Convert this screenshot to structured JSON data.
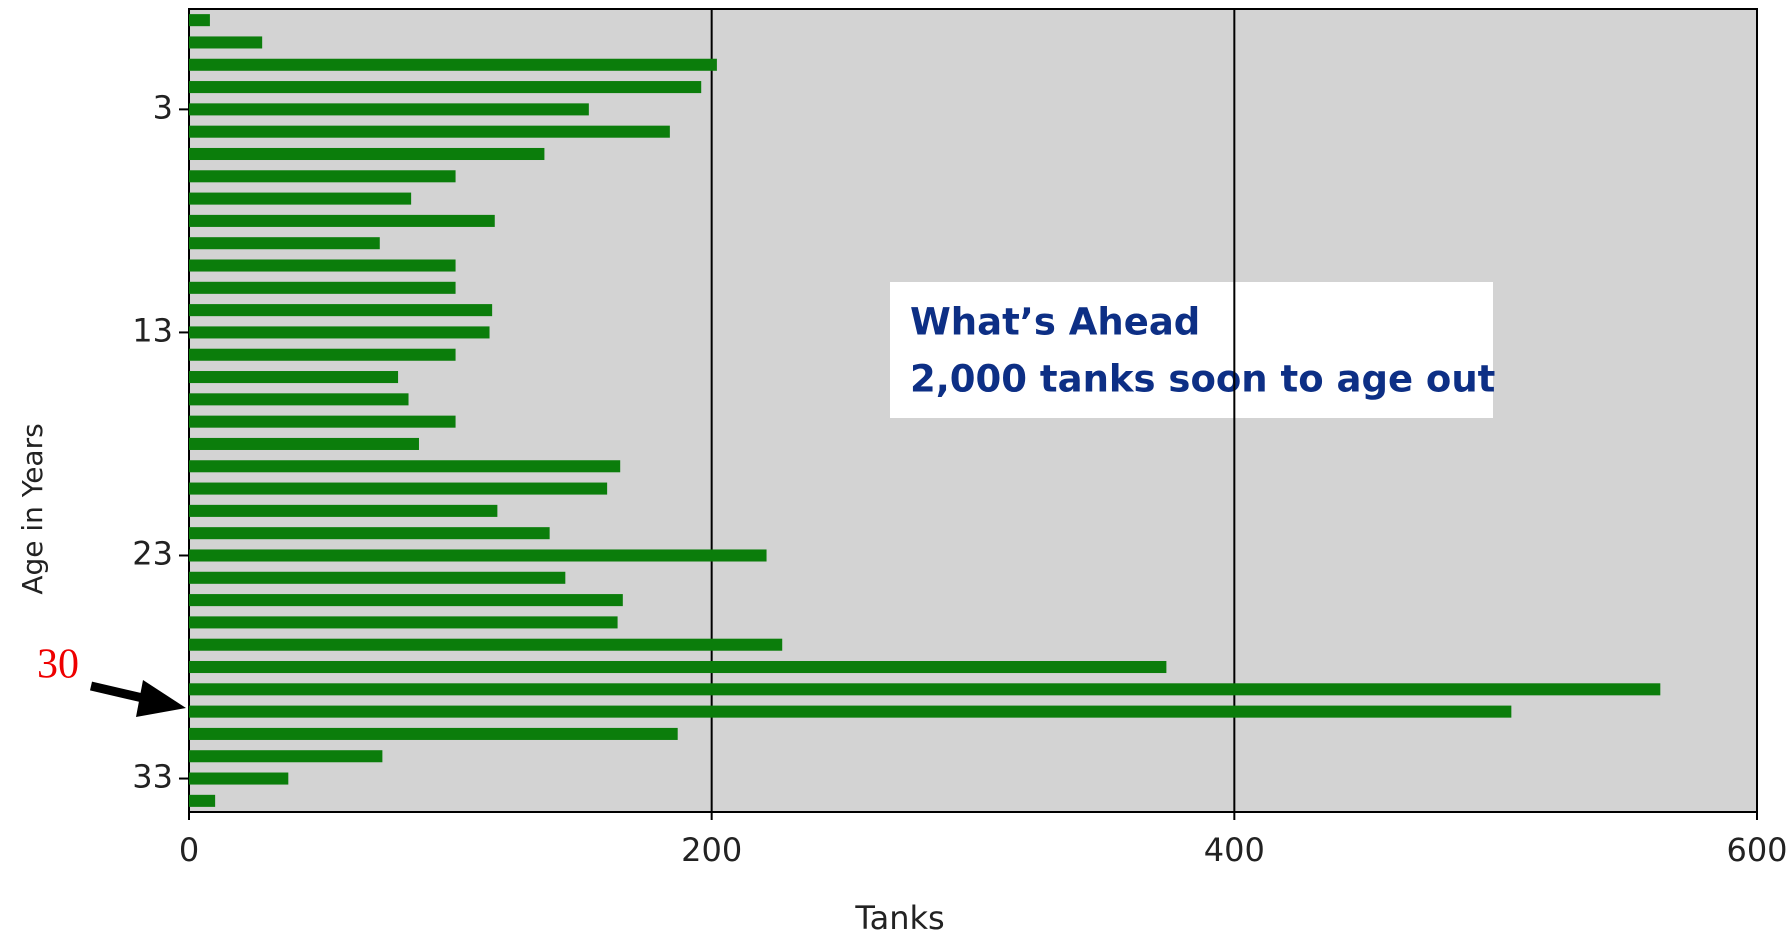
{
  "chart_data": {
    "type": "bar",
    "orientation": "horizontal",
    "x_label": "Tanks",
    "y_label": "Age in Years",
    "categories": [
      null,
      null,
      null,
      null,
      "3",
      null,
      null,
      null,
      null,
      null,
      null,
      null,
      null,
      null,
      "13",
      null,
      null,
      null,
      null,
      null,
      null,
      null,
      null,
      null,
      "23",
      null,
      null,
      null,
      null,
      null,
      null,
      null,
      null,
      null,
      "33",
      null
    ],
    "values": [
      8,
      28,
      202,
      196,
      153,
      184,
      136,
      102,
      85,
      117,
      73,
      102,
      102,
      116,
      115,
      102,
      80,
      84,
      102,
      88,
      165,
      160,
      118,
      138,
      221,
      144,
      166,
      164,
      227,
      374,
      563,
      506,
      187,
      74,
      38,
      10
    ],
    "color": "#0b7d0b",
    "xlim": [
      0,
      600
    ],
    "xticks": [
      0,
      200,
      400,
      600
    ],
    "grid": true,
    "annotations": [
      "30",
      "What’s Ahead",
      "2,000 tanks soon to age out"
    ]
  }
}
